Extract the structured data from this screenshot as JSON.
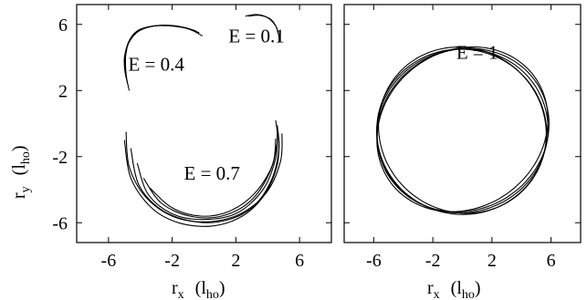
{
  "chart_data": [
    {
      "type": "line",
      "panel": "left",
      "xlabel": "r",
      "xlabel_sub": "x",
      "xlabel_unit": "(l",
      "xlabel_unit_sub": "ho",
      "xlabel_unit_close": ")",
      "ylabel": "r",
      "ylabel_sub": "y",
      "ylabel_unit": "(l",
      "ylabel_unit_sub": "ho",
      "ylabel_unit_close": ")",
      "xlim": [
        -8,
        8
      ],
      "ylim": [
        -7.2,
        7.2
      ],
      "xticks": [
        -6,
        -2,
        2,
        6
      ],
      "yticks": [
        6,
        2,
        -2,
        -6
      ],
      "xtick_labels": [
        "-6",
        "-2",
        "2",
        "6"
      ],
      "ytick_labels": [
        "6",
        "2",
        "-2",
        "-6"
      ],
      "grid": false,
      "annotations": [
        {
          "text": "E = 0.1",
          "x": 3.3,
          "y": 5.3
        },
        {
          "text": "E = 0.4",
          "x": -3.0,
          "y": 3.6
        },
        {
          "text": "E = 0.7",
          "x": 0.5,
          "y": -3.0
        }
      ],
      "series": [
        {
          "group": "E = 0.1",
          "points": [
            [
              2.6,
              6.5
            ],
            [
              3.3,
              6.6
            ],
            [
              4.0,
              6.4
            ],
            [
              4.5,
              5.9
            ],
            [
              4.7,
              5.3
            ],
            [
              4.7,
              4.9
            ]
          ]
        },
        {
          "group": "E = 0.1",
          "points": [
            [
              2.8,
              6.5
            ],
            [
              3.5,
              6.55
            ],
            [
              4.2,
              6.3
            ],
            [
              4.6,
              5.7
            ],
            [
              4.75,
              5.0
            ]
          ]
        },
        {
          "group": "E = 0.4",
          "points": [
            [
              -4.7,
              2.0
            ],
            [
              -4.9,
              3.0
            ],
            [
              -4.9,
              4.3
            ],
            [
              -4.5,
              5.3
            ],
            [
              -3.6,
              5.8
            ],
            [
              -2.4,
              5.95
            ],
            [
              -1.2,
              5.8
            ],
            [
              -0.3,
              5.5
            ]
          ]
        },
        {
          "group": "E = 0.4",
          "points": [
            [
              -4.8,
              2.4
            ],
            [
              -5.0,
              3.5
            ],
            [
              -4.8,
              4.8
            ],
            [
              -4.2,
              5.6
            ],
            [
              -3.2,
              5.9
            ],
            [
              -2.0,
              5.9
            ],
            [
              -0.9,
              5.7
            ],
            [
              -0.1,
              5.3
            ]
          ]
        },
        {
          "group": "E = 0.4",
          "points": [
            [
              -4.9,
              2.8
            ],
            [
              -5.0,
              4.0
            ],
            [
              -4.6,
              5.1
            ],
            [
              -3.8,
              5.75
            ],
            [
              -2.6,
              5.95
            ],
            [
              -1.4,
              5.85
            ],
            [
              -0.5,
              5.6
            ]
          ]
        },
        {
          "group": "E = 0.7",
          "points": [
            [
              -5.0,
              -1.0
            ],
            [
              -4.6,
              -3.3
            ],
            [
              -3.3,
              -5.1
            ],
            [
              -1.6,
              -6.0
            ],
            [
              0.5,
              -6.2
            ],
            [
              2.4,
              -5.6
            ],
            [
              3.8,
              -4.3
            ],
            [
              4.6,
              -2.5
            ],
            [
              4.7,
              -0.9
            ]
          ]
        },
        {
          "group": "E = 0.7",
          "points": [
            [
              -4.6,
              -1.5
            ],
            [
              -4.1,
              -3.7
            ],
            [
              -2.7,
              -5.2
            ],
            [
              -0.8,
              -5.9
            ],
            [
              1.2,
              -5.9
            ],
            [
              3.0,
              -5.1
            ],
            [
              4.2,
              -3.5
            ],
            [
              4.7,
              -1.6
            ],
            [
              4.6,
              -0.1
            ]
          ]
        },
        {
          "group": "E = 0.7",
          "points": [
            [
              -4.2,
              -2.4
            ],
            [
              -3.5,
              -4.3
            ],
            [
              -1.9,
              -5.5
            ],
            [
              0.1,
              -5.8
            ],
            [
              2.1,
              -5.4
            ],
            [
              3.7,
              -4.0
            ],
            [
              4.5,
              -2.1
            ],
            [
              4.6,
              -0.6
            ]
          ]
        },
        {
          "group": "E = 0.7",
          "points": [
            [
              -3.8,
              -3.3
            ],
            [
              -2.7,
              -4.8
            ],
            [
              -0.9,
              -5.6
            ],
            [
              1.1,
              -5.6
            ],
            [
              2.9,
              -4.7
            ],
            [
              4.1,
              -3.0
            ],
            [
              4.6,
              -1.1
            ],
            [
              4.5,
              0.2
            ]
          ]
        },
        {
          "group": "E = 0.7",
          "points": [
            [
              -4.9,
              -0.5
            ],
            [
              -4.7,
              -2.6
            ],
            [
              -3.7,
              -4.4
            ],
            [
              -2.0,
              -5.6
            ],
            [
              0.1,
              -5.95
            ],
            [
              2.2,
              -5.5
            ],
            [
              3.9,
              -4.2
            ],
            [
              4.8,
              -2.3
            ],
            [
              4.9,
              -0.6
            ]
          ]
        },
        {
          "group": "E = 0.7",
          "points": [
            [
              -3.4,
              -3.9
            ],
            [
              -2.0,
              -5.1
            ],
            [
              -0.2,
              -5.6
            ],
            [
              1.6,
              -5.3
            ],
            [
              3.2,
              -4.2
            ],
            [
              4.3,
              -2.5
            ],
            [
              4.5,
              -0.9
            ]
          ]
        }
      ]
    },
    {
      "type": "line",
      "panel": "right",
      "xlabel": "r",
      "xlabel_sub": "x",
      "xlabel_unit": "(l",
      "xlabel_unit_sub": "ho",
      "xlabel_unit_close": ")",
      "xlim": [
        -8,
        8
      ],
      "ylim": [
        -7.2,
        7.2
      ],
      "xticks": [
        -6,
        -2,
        2,
        6
      ],
      "yticks": [
        6,
        2,
        -2,
        -6
      ],
      "xtick_labels": [
        "-6",
        "-2",
        "2",
        "6"
      ],
      "grid": false,
      "annotations": [
        {
          "text": "E = 1",
          "x": 1.0,
          "y": 4.3
        }
      ],
      "series": [
        {
          "group": "E = 1",
          "ellipse": {
            "cx": 0.0,
            "cy": -0.35,
            "rx": 5.9,
            "ry": 4.85,
            "rot_deg": 20
          }
        },
        {
          "group": "E = 1",
          "ellipse": {
            "cx": 0.05,
            "cy": -0.4,
            "rx": 5.85,
            "ry": 4.9,
            "rot_deg": 12
          }
        },
        {
          "group": "E = 1",
          "ellipse": {
            "cx": 0.0,
            "cy": -0.45,
            "rx": 5.8,
            "ry": 4.95,
            "rot_deg": 5
          }
        },
        {
          "group": "E = 1",
          "ellipse": {
            "cx": -0.05,
            "cy": -0.5,
            "rx": 5.75,
            "ry": 5.0,
            "rot_deg": -3
          }
        },
        {
          "group": "E = 1",
          "ellipse": {
            "cx": 0.0,
            "cy": -0.4,
            "rx": 5.7,
            "ry": 5.0,
            "rot_deg": -11
          }
        }
      ]
    }
  ]
}
